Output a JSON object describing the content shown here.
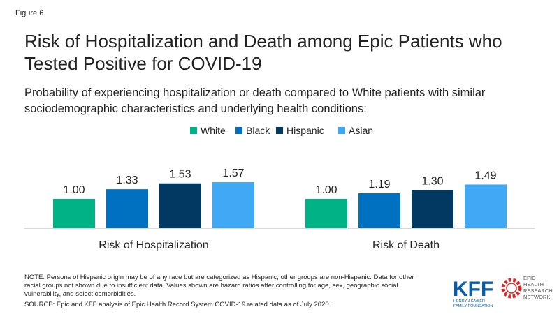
{
  "figure_label": "Figure 6",
  "footer": {
    "note_lines": [
      "NOTE: Persons of Hispanic origin may be of any race but are categorized as Hispanic; other groups are non-Hispanic. Data for other",
      "racial groups not shown due to insufficient data. Values shown are hazard ratios after controlling for age, sex, geographic social",
      "vulnerability,  and select comorbidities."
    ],
    "source": "SOURCE: Epic and KFF analysis of Epic Health Record System COVID-19 related data as of July 2020.",
    "kff_logo": "KFF",
    "kff_tagline": [
      "HENRY J KAISER",
      "FAMILY FOUNDATION"
    ],
    "epic_logo": [
      "EPIC",
      "HEALTH",
      "RESEARCH",
      "NETWORK"
    ]
  },
  "chart_data": {
    "type": "bar",
    "title_lines": [
      "Risk of Hospitalization and Death among Epic Patients who",
      "Tested Positive for COVID-19"
    ],
    "subtitle_lines": [
      "Probability of experiencing hospitalization or death compared to White patients with similar",
      "sociodemographic characteristics and underlying health conditions:"
    ],
    "categories": [
      "Risk of Hospitalization",
      "Risk of Death"
    ],
    "series": [
      {
        "name": "White",
        "color": "#00b386",
        "values": [
          1.0,
          1.0
        ],
        "value_labels": [
          "1.00",
          "1.00"
        ]
      },
      {
        "name": "Black",
        "color": "#0070c0",
        "values": [
          1.33,
          1.19
        ],
        "value_labels": [
          "1.33",
          "1.19"
        ]
      },
      {
        "name": "Hispanic",
        "color": "#003a63",
        "values": [
          1.53,
          1.3
        ],
        "value_labels": [
          "1.53",
          "1.30"
        ]
      },
      {
        "name": "Asian",
        "color": "#3fa9f5",
        "values": [
          1.57,
          1.49
        ],
        "value_labels": [
          "1.57",
          "1.49"
        ]
      }
    ]
  }
}
